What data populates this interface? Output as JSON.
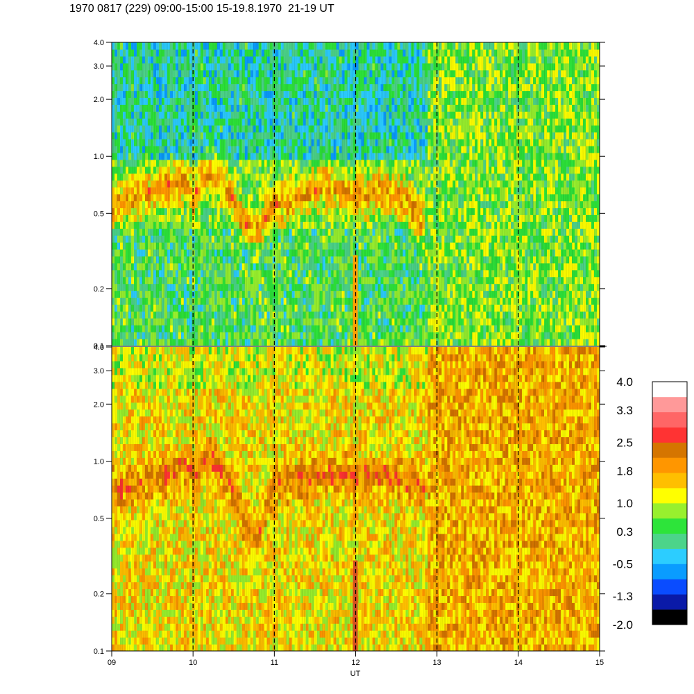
{
  "title": "1970 0817 (229) 09:00-15:00 15-19.8.1970  21-19 UT",
  "chart_data": {
    "type": "heatmap",
    "title": "1970 0817 (229) 09:00-15:00 15-19.8.1970  21-19 UT",
    "xlabel": "UT",
    "x_range": [
      9,
      15
    ],
    "x_ticks": [
      "09",
      "10",
      "11",
      "12",
      "13",
      "14",
      "15"
    ],
    "x_tick_values": [
      9,
      10,
      11,
      12,
      13,
      14,
      15
    ],
    "hour_markers": [
      10,
      11,
      12,
      13,
      14
    ],
    "y_scale": "log",
    "y_range": [
      0.1,
      4.0
    ],
    "y_ticks": [
      "4.0",
      "3.0",
      "2.0",
      "1.0",
      "0.5",
      "0.2",
      "0.1"
    ],
    "y_tick_values": [
      4.0,
      3.0,
      2.0,
      1.0,
      0.5,
      0.2,
      0.1
    ],
    "panels": [
      {
        "name": "upper",
        "summary": "green/cyan background with a yellow-orange band near 0.5-0.8 from 09 to ~12.8 UT, green-dominant below 0.4",
        "band": {
          "times": [
            9.0,
            9.3,
            9.6,
            9.9,
            10.0,
            10.2,
            10.4,
            10.6,
            10.8,
            11.0,
            11.3,
            11.6,
            11.9,
            12.0,
            12.3,
            12.6,
            12.8
          ],
          "center": [
            0.55,
            0.6,
            0.7,
            0.75,
            0.6,
            0.85,
            0.7,
            0.45,
            0.4,
            0.55,
            0.6,
            0.7,
            0.65,
            0.6,
            0.65,
            0.6,
            0.45
          ]
        },
        "background_level": 0.3
      },
      {
        "name": "lower",
        "summary": "yellow/orange background with a darker orange band near 0.7-1.0 from 09 to ~12.8 UT, orange dominant after 13 UT",
        "band": {
          "times": [
            9.0,
            9.3,
            9.6,
            9.9,
            10.0,
            10.2,
            10.4,
            10.6,
            10.8,
            11.0,
            11.3,
            11.6,
            11.9,
            12.0,
            12.3,
            12.6,
            12.8
          ],
          "center": [
            0.7,
            0.75,
            0.8,
            0.95,
            0.85,
            1.05,
            0.8,
            0.5,
            0.4,
            0.75,
            0.8,
            0.85,
            0.85,
            0.8,
            0.85,
            0.8,
            0.75
          ]
        },
        "background_level": 1.2
      }
    ],
    "colorbar": {
      "tick_labels": [
        "4.0",
        "3.3",
        "2.5",
        "1.8",
        "1.0",
        "0.3",
        "-0.5",
        "-1.3",
        "-2.0"
      ],
      "range": [
        -2.0,
        4.0
      ],
      "colors": [
        "#000000",
        "#0a1aa8",
        "#0a4cff",
        "#0a9cff",
        "#2ccdff",
        "#4cd48a",
        "#2de43a",
        "#98f02e",
        "#ffff00",
        "#ffbf00",
        "#ff9600",
        "#d57500",
        "#ff3333",
        "#ff6666",
        "#ff9999",
        "#ffffff"
      ]
    }
  }
}
